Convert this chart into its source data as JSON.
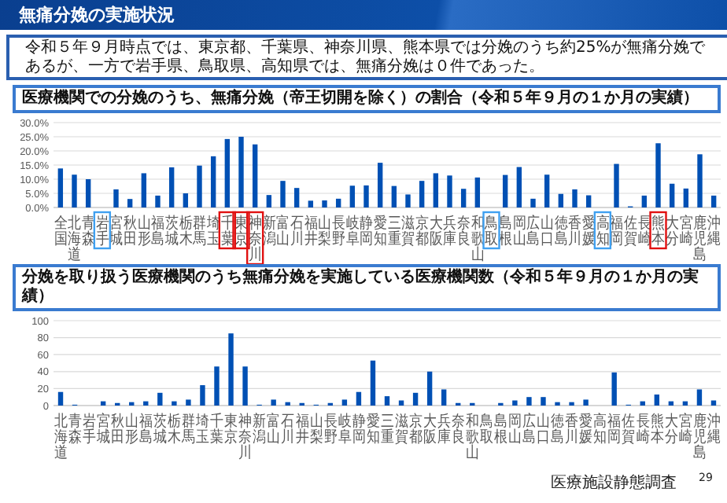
{
  "chart_data": [
    {
      "type": "bar",
      "title": "医療機関での分娩のうち、無痛分娩（帝王切開を除く）の割合（令和５年９月の１か月の実績）",
      "annotations": [
        "無痛分娩の実施状況",
        "令和５年９月時点では、東京都、千葉県、神奈川県、熊本県では分娩のうち約25%が無痛分娩であるが、一方で岩手県、鳥取県、高知県では、無痛分娩は０件であった。"
      ],
      "categories": [
        "全国",
        "北海道",
        "青森",
        "岩手",
        "宮城",
        "秋田",
        "山形",
        "福島",
        "茨城",
        "栃木",
        "群馬",
        "埼玉",
        "千葉",
        "東京",
        "神奈川",
        "新潟",
        "富山",
        "石川",
        "福井",
        "山梨",
        "長野",
        "岐阜",
        "静岡",
        "愛知",
        "三重",
        "滋賀",
        "京都",
        "大阪",
        "兵庫",
        "奈良",
        "和歌山",
        "鳥取",
        "島根",
        "岡山",
        "広島",
        "山口",
        "徳島",
        "香川",
        "愛媛",
        "高知",
        "福岡",
        "佐賀",
        "長崎",
        "熊本",
        "大分",
        "宮崎",
        "鹿児島",
        "沖縄"
      ],
      "values": [
        13.8,
        11.6,
        10.0,
        0,
        6.4,
        3.0,
        12.1,
        4.2,
        14.2,
        5.0,
        14.8,
        18.1,
        24.2,
        25.0,
        22.3,
        4.4,
        9.4,
        6.9,
        2.4,
        2.5,
        3.1,
        7.7,
        7.8,
        15.8,
        7.6,
        4.6,
        9.4,
        12.1,
        11.3,
        6.6,
        10.6,
        0,
        11.5,
        14.3,
        3.1,
        11.6,
        4.8,
        6.4,
        4.3,
        0,
        15.4,
        0.4,
        4.2,
        22.7,
        8.4,
        6.7,
        18.8,
        4.2
      ],
      "color": "#0050b4",
      "ylim": [
        0,
        30
      ],
      "yticks": [
        {
          "value": 0,
          "label": "0.0%"
        },
        {
          "value": 5,
          "label": "5.0%"
        },
        {
          "value": 10,
          "label": "10.0%"
        },
        {
          "value": 15,
          "label": "15.0%"
        },
        {
          "value": 20,
          "label": "20.0%"
        },
        {
          "value": 25,
          "label": "25.0%"
        },
        {
          "value": 30,
          "label": "30.0%"
        }
      ],
      "grid": "y"
    },
    {
      "type": "bar",
      "title": "分娩を取り扱う医療機関のうち無痛分娩を実施している医療機関数（令和５年９月の１か月の実績）",
      "annotations": [
        "医療施設静態調査",
        "29"
      ],
      "categories": [
        "北海道",
        "青森",
        "岩手",
        "宮城",
        "秋田",
        "山形",
        "福島",
        "茨城",
        "栃木",
        "群馬",
        "埼玉",
        "千葉",
        "東京",
        "神奈川",
        "新潟",
        "富山",
        "石川",
        "福井",
        "山梨",
        "長野",
        "岐阜",
        "静岡",
        "愛知",
        "三重",
        "滋賀",
        "京都",
        "大阪",
        "兵庫",
        "奈良",
        "和歌山",
        "鳥取",
        "島根",
        "岡山",
        "広島",
        "山口",
        "徳島",
        "香川",
        "愛媛",
        "高知",
        "福岡",
        "佐賀",
        "長崎",
        "熊本",
        "大分",
        "宮崎",
        "鹿児島",
        "沖縄"
      ],
      "values": [
        16,
        1,
        0,
        5,
        3,
        4,
        5,
        15,
        5,
        7,
        24,
        46,
        85,
        46,
        1,
        7,
        4,
        3,
        1,
        3,
        7,
        16,
        53,
        11,
        6,
        15,
        40,
        19,
        3,
        3,
        0,
        3,
        6,
        10,
        10,
        4,
        4,
        7,
        0,
        39,
        1,
        5,
        13,
        5,
        5,
        19,
        6
      ],
      "color": "#0050b4",
      "ylim": [
        0,
        100
      ],
      "yticks": [
        0,
        20,
        40,
        60,
        80,
        100
      ],
      "grid": "y"
    }
  ]
}
